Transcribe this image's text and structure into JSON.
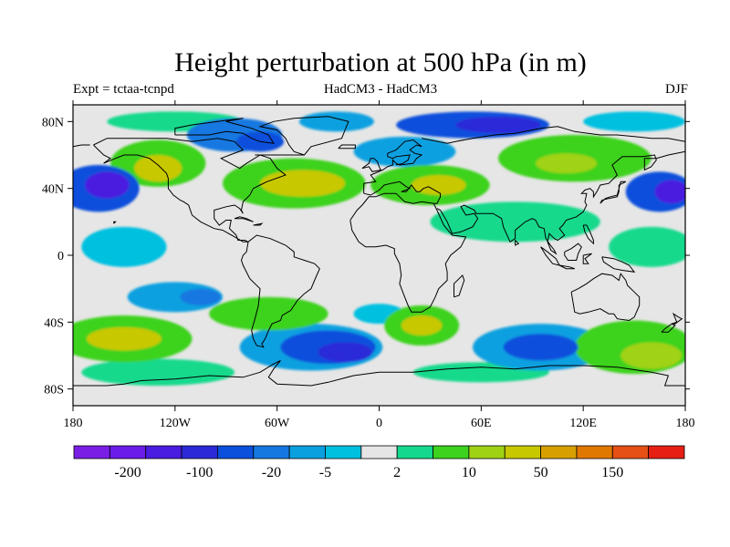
{
  "title": "Height perturbation at 500 hPa (in m)",
  "subtitle_left": "Expt = tctaa-tcnpd",
  "subtitle_center": "HadCM3 - HadCM3",
  "subtitle_right": "DJF",
  "chart_data": {
    "type": "heatmap",
    "field": "500 hPa height perturbation",
    "units": "m",
    "x_axis": {
      "range": [
        -180,
        180
      ],
      "ticks": [
        -180,
        -120,
        -60,
        0,
        60,
        120,
        180
      ],
      "tick_labels": [
        "180",
        "120W",
        "60W",
        "0",
        "60E",
        "120E",
        "180"
      ]
    },
    "y_axis": {
      "range": [
        -90,
        90
      ],
      "ticks": [
        80,
        40,
        0,
        -40,
        -80
      ],
      "tick_labels": [
        "80N",
        "40N",
        "0",
        "40S",
        "80S"
      ]
    },
    "colorbar": {
      "colors": [
        "#7a1ee6",
        "#6a1ce8",
        "#4a1be0",
        "#2a2ad8",
        "#0a50dc",
        "#1478e0",
        "#0aa0e0",
        "#00c0e0",
        "#e6e6e6",
        "#14d98c",
        "#3cd21e",
        "#a0d214",
        "#c8c800",
        "#d7a000",
        "#e07800",
        "#e65014",
        "#e61e14"
      ],
      "tick_labels": [
        "-200",
        "-100",
        "-20",
        "-5",
        "2",
        "10",
        "50",
        "150"
      ]
    },
    "background_color": "#e6e6e6",
    "blobs": [
      {
        "lon": -165,
        "lat": 40,
        "rx": 24,
        "ry": 14,
        "level": -4
      },
      {
        "lon": -160,
        "lat": 42,
        "rx": 13,
        "ry": 8,
        "level": -6
      },
      {
        "lon": -85,
        "lat": 72,
        "rx": 28,
        "ry": 10,
        "level": -3
      },
      {
        "lon": -70,
        "lat": 68,
        "rx": 14,
        "ry": 6,
        "level": -4
      },
      {
        "lon": -25,
        "lat": 80,
        "rx": 22,
        "ry": 6,
        "level": -2
      },
      {
        "lon": 55,
        "lat": 78,
        "rx": 45,
        "ry": 8,
        "level": -4
      },
      {
        "lon": 70,
        "lat": 78,
        "rx": 25,
        "ry": 5,
        "level": -5
      },
      {
        "lon": 15,
        "lat": 62,
        "rx": 30,
        "ry": 9,
        "level": -2
      },
      {
        "lon": 165,
        "lat": 38,
        "rx": 20,
        "ry": 12,
        "level": -4
      },
      {
        "lon": 172,
        "lat": 38,
        "rx": 10,
        "ry": 7,
        "level": -6
      },
      {
        "lon": -150,
        "lat": 5,
        "rx": 25,
        "ry": 12,
        "level": -1
      },
      {
        "lon": -120,
        "lat": -25,
        "rx": 28,
        "ry": 9,
        "level": -2
      },
      {
        "lon": -105,
        "lat": -25,
        "rx": 12,
        "ry": 5,
        "level": -3
      },
      {
        "lon": -40,
        "lat": -55,
        "rx": 42,
        "ry": 14,
        "level": -2
      },
      {
        "lon": -30,
        "lat": -55,
        "rx": 28,
        "ry": 10,
        "level": -4
      },
      {
        "lon": -20,
        "lat": -58,
        "rx": 16,
        "ry": 6,
        "level": -5
      },
      {
        "lon": 95,
        "lat": -55,
        "rx": 40,
        "ry": 14,
        "level": -2
      },
      {
        "lon": 95,
        "lat": -55,
        "rx": 22,
        "ry": 8,
        "level": -4
      },
      {
        "lon": 0,
        "lat": -35,
        "rx": 15,
        "ry": 6,
        "level": -1
      },
      {
        "lon": -130,
        "lat": 55,
        "rx": 28,
        "ry": 14,
        "level": 2
      },
      {
        "lon": -130,
        "lat": 52,
        "rx": 14,
        "ry": 8,
        "level": 4
      },
      {
        "lon": -50,
        "lat": 43,
        "rx": 42,
        "ry": 15,
        "level": 2
      },
      {
        "lon": -45,
        "lat": 43,
        "rx": 25,
        "ry": 8,
        "level": 4
      },
      {
        "lon": 30,
        "lat": 42,
        "rx": 35,
        "ry": 12,
        "level": 2
      },
      {
        "lon": 35,
        "lat": 42,
        "rx": 16,
        "ry": 6,
        "level": 4
      },
      {
        "lon": 115,
        "lat": 58,
        "rx": 45,
        "ry": 14,
        "level": 2
      },
      {
        "lon": 110,
        "lat": 55,
        "rx": 18,
        "ry": 6,
        "level": 3
      },
      {
        "lon": 20,
        "lat": 60,
        "rx": 10,
        "ry": 5,
        "level": 1
      },
      {
        "lon": -150,
        "lat": -50,
        "rx": 40,
        "ry": 14,
        "level": 2
      },
      {
        "lon": -150,
        "lat": -50,
        "rx": 22,
        "ry": 7,
        "level": 4
      },
      {
        "lon": -65,
        "lat": -35,
        "rx": 35,
        "ry": 10,
        "level": 2
      },
      {
        "lon": 25,
        "lat": -42,
        "rx": 22,
        "ry": 12,
        "level": 2
      },
      {
        "lon": 25,
        "lat": -42,
        "rx": 12,
        "ry": 6,
        "level": 4
      },
      {
        "lon": 150,
        "lat": -55,
        "rx": 35,
        "ry": 16,
        "level": 2
      },
      {
        "lon": 160,
        "lat": -60,
        "rx": 18,
        "ry": 8,
        "level": 3
      },
      {
        "lon": 80,
        "lat": 20,
        "rx": 50,
        "ry": 12,
        "level": 1
      },
      {
        "lon": 160,
        "lat": 5,
        "rx": 25,
        "ry": 12,
        "level": 1
      },
      {
        "lon": -130,
        "lat": -70,
        "rx": 45,
        "ry": 8,
        "level": 1
      },
      {
        "lon": 60,
        "lat": -70,
        "rx": 40,
        "ry": 6,
        "level": 1
      },
      {
        "lon": -120,
        "lat": 80,
        "rx": 40,
        "ry": 6,
        "level": 1
      },
      {
        "lon": 150,
        "lat": 80,
        "rx": 30,
        "ry": 6,
        "level": -1
      }
    ]
  }
}
